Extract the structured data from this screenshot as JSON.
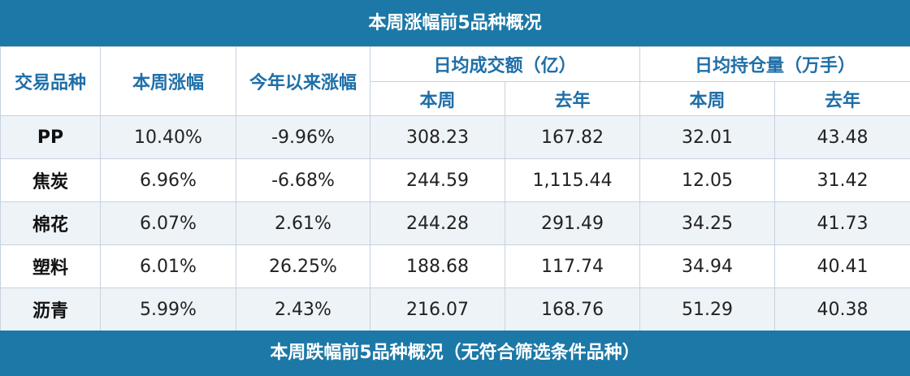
{
  "title": "本周涨幅前5品种概况",
  "header": {
    "top": [
      "交易品种",
      "本周涨幅",
      "今年以来涨幅",
      "日均成交额（亿）",
      "日均持仓量（万手）"
    ],
    "sub": [
      "本周",
      "去年",
      "本周",
      "去年"
    ]
  },
  "rows": [
    [
      "PP",
      "10.40%",
      "-9.96%",
      "308.23",
      "167.82",
      "32.01",
      "43.48"
    ],
    [
      "焦炭",
      "6.96%",
      "-6.68%",
      "244.59",
      "1,115.44",
      "12.05",
      "31.42"
    ],
    [
      "棉花",
      "6.07%",
      "2.61%",
      "244.28",
      "291.49",
      "34.25",
      "41.73"
    ],
    [
      "塑料",
      "6.01%",
      "26.25%",
      "188.68",
      "117.74",
      "34.94",
      "40.41"
    ],
    [
      "沥青",
      "5.99%",
      "2.43%",
      "216.07",
      "168.76",
      "51.29",
      "40.38"
    ]
  ],
  "footer": "本周跌幅前5品种概况（无符合筛选条件品种）"
}
